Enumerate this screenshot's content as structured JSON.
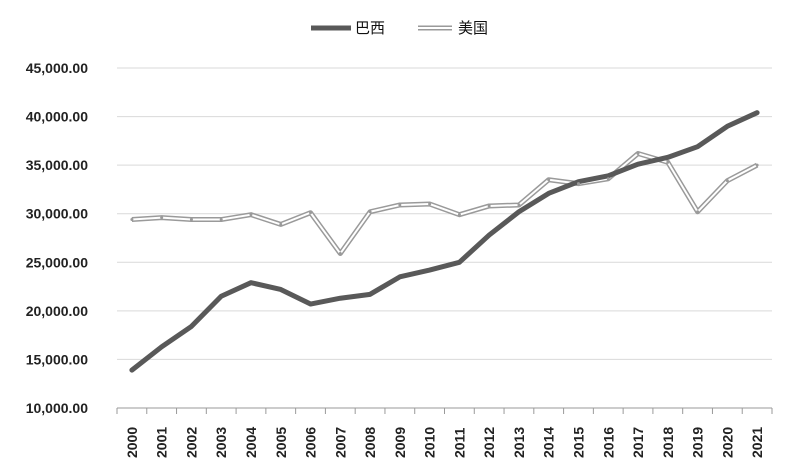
{
  "chart_data": {
    "type": "line",
    "title": "",
    "xlabel": "",
    "ylabel": "",
    "ylim": [
      10000,
      45000
    ],
    "y_ticks": [
      "10,000.00",
      "15,000.00",
      "20,000.00",
      "25,000.00",
      "30,000.00",
      "35,000.00",
      "40,000.00",
      "45,000.00"
    ],
    "y_tick_values": [
      10000,
      15000,
      20000,
      25000,
      30000,
      35000,
      40000,
      45000
    ],
    "x": [
      "2000",
      "2001",
      "2002",
      "2003",
      "2004",
      "2005",
      "2006",
      "2007",
      "2008",
      "2009",
      "2010",
      "2011",
      "2012",
      "2013",
      "2014",
      "2015",
      "2016",
      "2017",
      "2018",
      "2019",
      "2020",
      "2021"
    ],
    "grid": "horizontal",
    "legend_position": "top",
    "series": [
      {
        "name": "巴西",
        "color": "#595959",
        "style": "thick-solid",
        "values": [
          13900,
          16300,
          18400,
          21500,
          22900,
          22200,
          20700,
          21300,
          21700,
          23500,
          24200,
          25000,
          27800,
          30200,
          32100,
          33300,
          33900,
          35100,
          35800,
          36900,
          39000,
          40400
        ]
      },
      {
        "name": "美国",
        "color": "#a6a6a6",
        "style": "double-line",
        "values": [
          29400,
          29600,
          29400,
          29400,
          29900,
          28900,
          30100,
          25900,
          30200,
          30900,
          31000,
          29900,
          30800,
          30900,
          33500,
          33100,
          33600,
          36200,
          35300,
          30200,
          33400,
          35000
        ]
      }
    ]
  }
}
